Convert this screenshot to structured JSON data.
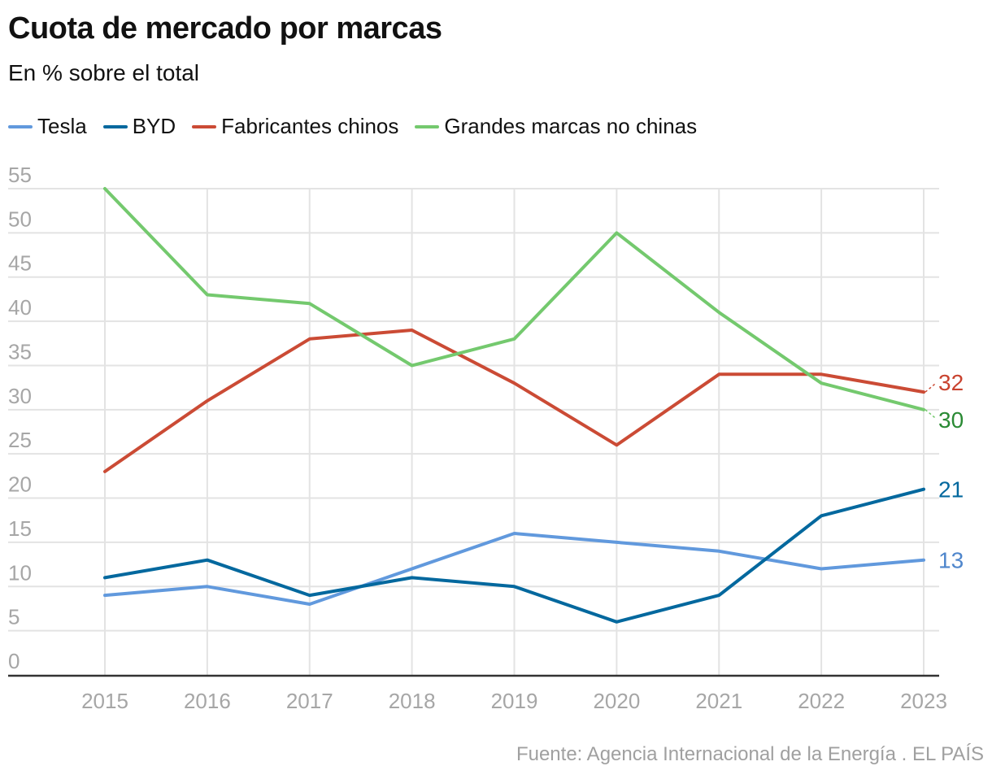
{
  "header": {
    "title": "Cuota de mercado por marcas",
    "subtitle": "En % sobre el total"
  },
  "legend": [
    {
      "label": "Tesla",
      "color": "#6199dd"
    },
    {
      "label": "BYD",
      "color": "#03689e"
    },
    {
      "label": "Fabricantes chinos",
      "color": "#cb4b35"
    },
    {
      "label": "Grandes marcas no chinas",
      "color": "#74c96e"
    }
  ],
  "footer": {
    "source": "Fuente: Agencia Internacional de la Energía . EL PAÍS"
  },
  "chart_data": {
    "type": "line",
    "title": "Cuota de mercado por marcas",
    "subtitle": "En % sobre el total",
    "xlabel": "",
    "ylabel": "",
    "x": [
      "2015",
      "2016",
      "2017",
      "2018",
      "2019",
      "2020",
      "2021",
      "2022",
      "2023"
    ],
    "yticks": [
      "0",
      "5",
      "10",
      "15",
      "20",
      "25",
      "30",
      "35",
      "40",
      "45",
      "50",
      "55"
    ],
    "ylim": [
      0,
      55
    ],
    "grid": true,
    "legend_position": "top-left",
    "series": [
      {
        "name": "Tesla",
        "color": "#6199dd",
        "label_color": "#4f86cc",
        "values": [
          9,
          10,
          8,
          12,
          16,
          15,
          14,
          12,
          13
        ],
        "end_label": "13"
      },
      {
        "name": "BYD",
        "color": "#03689e",
        "label_color": "#03689e",
        "values": [
          11,
          13,
          9,
          11,
          10,
          6,
          9,
          18,
          21
        ],
        "end_label": "21"
      },
      {
        "name": "Fabricantes chinos",
        "color": "#cb4b35",
        "label_color": "#c9432f",
        "values": [
          23,
          31,
          38,
          39,
          33,
          26,
          34,
          34,
          32
        ],
        "end_label": "32"
      },
      {
        "name": "Grandes marcas no chinas",
        "color": "#74c96e",
        "label_color": "#2a8a34",
        "values": [
          55,
          43,
          42,
          35,
          38,
          50,
          41,
          33,
          30
        ],
        "end_label": "30"
      }
    ],
    "source": "Fuente: Agencia Internacional de la Energía . EL PAÍS"
  }
}
